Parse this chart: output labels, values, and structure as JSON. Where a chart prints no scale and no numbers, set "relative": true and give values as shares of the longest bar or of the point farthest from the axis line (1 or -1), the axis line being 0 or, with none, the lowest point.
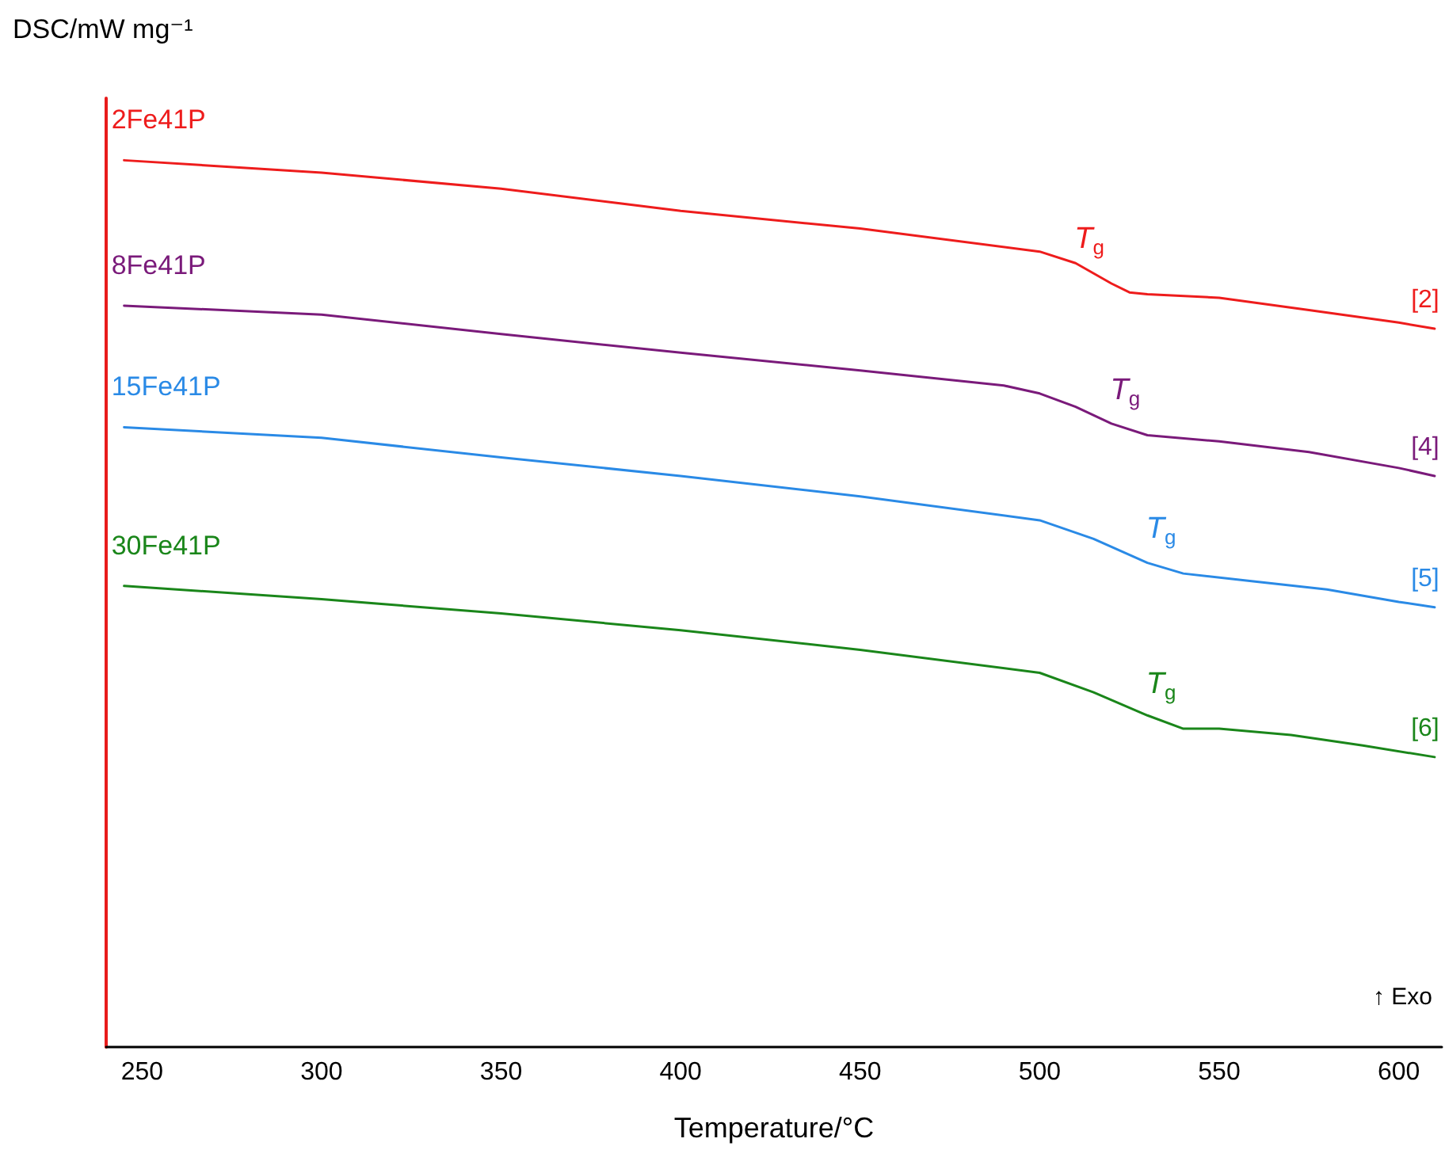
{
  "chart_data": {
    "type": "line",
    "relative": true,
    "xlabel": "Temperature/°C",
    "ylabel": "DSC/mW mg⁻¹",
    "xlim": [
      240,
      612
    ],
    "xticks": [
      250,
      300,
      350,
      400,
      450,
      500,
      550,
      600
    ],
    "grid": false,
    "legend": false,
    "marker": "none",
    "line_style": "solid",
    "series": [
      {
        "name": "2Fe41P",
        "color": "#ee1c1c",
        "x": [
          245,
          300,
          350,
          400,
          450,
          500,
          510,
          520,
          525,
          530,
          550,
          575,
          600,
          610
        ],
        "values": [
          1.0,
          0.986,
          0.968,
          0.943,
          0.923,
          0.897,
          0.884,
          0.861,
          0.851,
          0.849,
          0.845,
          0.831,
          0.817,
          0.81
        ]
      },
      {
        "name": "8Fe41P",
        "color": "#7a1a7a",
        "x": [
          245,
          300,
          350,
          400,
          450,
          490,
          500,
          510,
          520,
          530,
          550,
          575,
          600,
          610
        ],
        "values": [
          0.836,
          0.826,
          0.804,
          0.783,
          0.763,
          0.746,
          0.737,
          0.722,
          0.703,
          0.69,
          0.683,
          0.671,
          0.653,
          0.644
        ]
      },
      {
        "name": "15Fe41P",
        "color": "#2a8ae6",
        "x": [
          245,
          300,
          350,
          400,
          450,
          500,
          515,
          530,
          540,
          560,
          580,
          600,
          610
        ],
        "values": [
          0.699,
          0.687,
          0.665,
          0.644,
          0.621,
          0.594,
          0.573,
          0.546,
          0.534,
          0.525,
          0.516,
          0.502,
          0.496
        ]
      },
      {
        "name": "30Fe41P",
        "color": "#1a861a",
        "x": [
          245,
          300,
          350,
          400,
          450,
          500,
          515,
          530,
          540,
          550,
          570,
          590,
          610
        ],
        "values": [
          0.52,
          0.505,
          0.489,
          0.47,
          0.448,
          0.422,
          0.4,
          0.374,
          0.359,
          0.359,
          0.352,
          0.34,
          0.327
        ]
      }
    ],
    "annotations": [
      {
        "text": "T$_{g}$",
        "x": 520,
        "y": 0.861
      },
      {
        "text": "T$_{g}$",
        "x": 530,
        "y": 0.69
      },
      {
        "text": "T$_{g}$",
        "x": 540,
        "y": 0.534
      },
      {
        "text": "T$_{g}$",
        "x": 540,
        "y": 0.359
      },
      {
        "text": "[2]",
        "x": 610,
        "y": 0.81
      },
      {
        "text": "[4]",
        "x": 610,
        "y": 0.644
      },
      {
        "text": "[5]",
        "x": 610,
        "y": 0.496
      },
      {
        "text": "[6]",
        "x": 610,
        "y": 0.327
      },
      "↑ Exo"
    ]
  }
}
